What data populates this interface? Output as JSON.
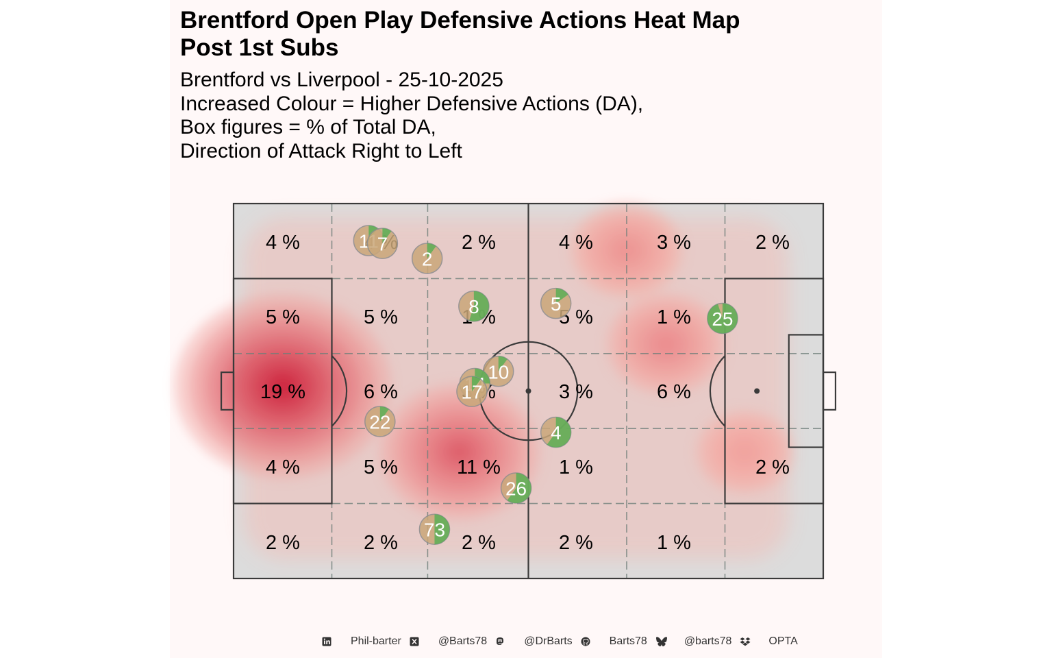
{
  "title_lines": [
    "Brentford Open Play Defensive Actions Heat Map",
    "Post 1st Subs"
  ],
  "subtitle_lines": [
    "Brentford vs Liverpool - 25-10-2025",
    "Increased Colour = Higher Defensive Actions (DA),",
    "Box figures = % of Total DA,",
    "Direction of Attack Right to Left"
  ],
  "footer": [
    {
      "icon": "linkedin-icon",
      "text": "Phil-barter"
    },
    {
      "icon": "x-twitter-icon",
      "text": "@Barts78"
    },
    {
      "icon": "mastodon-icon",
      "text": "@DrBarts"
    },
    {
      "icon": "github-icon",
      "text": "Barts78"
    },
    {
      "icon": "bluesky-icon",
      "text": "@barts78"
    },
    {
      "icon": "dropbox-icon",
      "text": "OPTA"
    }
  ],
  "colors": {
    "panel_bg": "#fff8f8",
    "pitch_fill": "#dcdcdc",
    "pitch_line": "#3a3a3a",
    "heat_low": "#f6b7ae",
    "heat_high": "#c8102e",
    "player_outer": "#c9a77a",
    "player_inner": "#4caf50"
  },
  "chart_data": {
    "type": "heatmap",
    "x_range": [
      0,
      120
    ],
    "y_range": [
      0,
      80
    ],
    "zone_percent_labels": [
      {
        "col": 0,
        "row": 0,
        "label": "4 %"
      },
      {
        "col": 1,
        "row": 0,
        "label": "4 %"
      },
      {
        "col": 2,
        "row": 0,
        "label": "2 %"
      },
      {
        "col": 3,
        "row": 0,
        "label": "4 %"
      },
      {
        "col": 4,
        "row": 0,
        "label": "3 %"
      },
      {
        "col": 5,
        "row": 0,
        "label": "2 %"
      },
      {
        "col": 0,
        "row": 1,
        "label": "5 %"
      },
      {
        "col": 1,
        "row": 1,
        "label": "5 %"
      },
      {
        "col": 2,
        "row": 1,
        "label": "1 %"
      },
      {
        "col": 3,
        "row": 1,
        "label": "5 %"
      },
      {
        "col": 4,
        "row": 1,
        "label": "1 %"
      },
      {
        "col": 0,
        "row": 2,
        "label": "19 %"
      },
      {
        "col": 1,
        "row": 2,
        "label": "6 %"
      },
      {
        "col": 2,
        "row": 2,
        "label": "3 %"
      },
      {
        "col": 3,
        "row": 2,
        "label": "3 %"
      },
      {
        "col": 4,
        "row": 2,
        "label": "6 %"
      },
      {
        "col": 0,
        "row": 3,
        "label": "4 %"
      },
      {
        "col": 1,
        "row": 3,
        "label": "5 %"
      },
      {
        "col": 2,
        "row": 3,
        "label": "11 %"
      },
      {
        "col": 3,
        "row": 3,
        "label": "1 %"
      },
      {
        "col": 5,
        "row": 3,
        "label": "2 %"
      },
      {
        "col": 0,
        "row": 4,
        "label": "2 %"
      },
      {
        "col": 1,
        "row": 4,
        "label": "2 %"
      },
      {
        "col": 2,
        "row": 4,
        "label": "2 %"
      },
      {
        "col": 3,
        "row": 4,
        "label": "2 %"
      },
      {
        "col": 4,
        "row": 4,
        "label": "1 %"
      }
    ],
    "players": [
      {
        "number": "11",
        "x": 27.5,
        "y": 7.9,
        "share": 0.1
      },
      {
        "number": "7",
        "x": 30.3,
        "y": 8.5,
        "share": 0.1
      },
      {
        "number": "2",
        "x": 39.4,
        "y": 11.7,
        "share": 0.1
      },
      {
        "number": "8",
        "x": 48.9,
        "y": 21.9,
        "share": 0.55
      },
      {
        "number": "5",
        "x": 65.6,
        "y": 21.3,
        "share": 0.15
      },
      {
        "number": "25",
        "x": 99.5,
        "y": 24.5,
        "share": 0.95
      },
      {
        "number": "10",
        "x": 53.9,
        "y": 35.8,
        "share": 0.1
      },
      {
        "number": "14",
        "x": 49.1,
        "y": 38.4,
        "share": 0.25
      },
      {
        "number": "17",
        "x": 48.5,
        "y": 40.1,
        "share": 0.1
      },
      {
        "number": "22",
        "x": 29.8,
        "y": 46.5,
        "share": 0.1
      },
      {
        "number": "4",
        "x": 65.6,
        "y": 48.8,
        "share": 0.6
      },
      {
        "number": "26",
        "x": 57.5,
        "y": 60.7,
        "share": 0.6
      },
      {
        "number": "73",
        "x": 40.9,
        "y": 69.5,
        "share": 0.5
      }
    ],
    "hotspots": [
      {
        "x": 10,
        "y": 39,
        "intensity": 1.0
      },
      {
        "x": 46,
        "y": 53,
        "intensity": 0.6
      },
      {
        "x": 88,
        "y": 30,
        "intensity": 0.3
      },
      {
        "x": 80,
        "y": 10,
        "intensity": 0.25
      },
      {
        "x": 104,
        "y": 53,
        "intensity": 0.15
      }
    ]
  }
}
